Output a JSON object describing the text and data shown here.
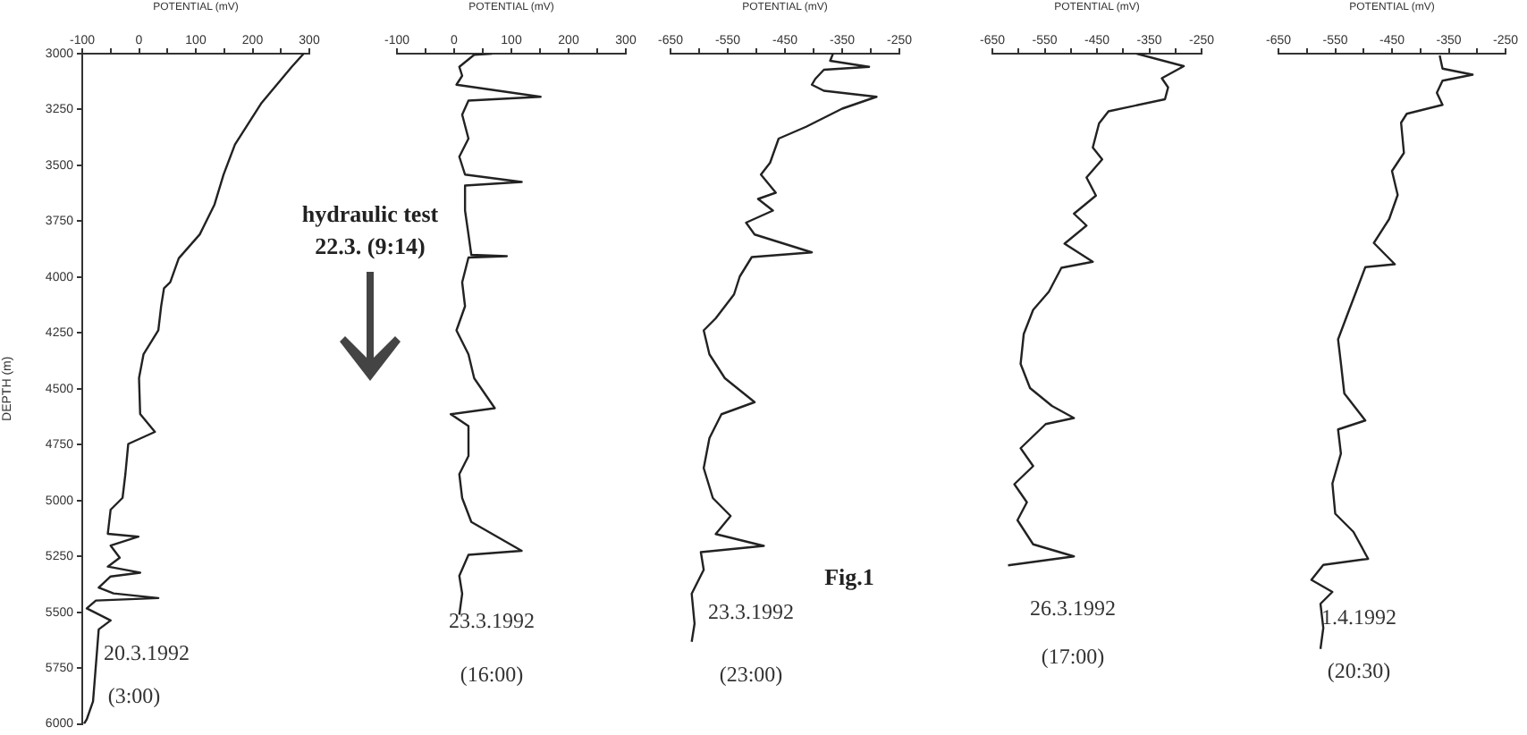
{
  "chart_data": [
    {
      "type": "line",
      "xlabel": "POTENTIAL (mV)",
      "ylabel": "DEPTH (m)",
      "xlim": [
        -100,
        300
      ],
      "xticks": [
        -100,
        {
          "value": -50,
          "label": null
        },
        0,
        {
          "value": 50,
          "label": null
        },
        100,
        {
          "value": 150,
          "label": null
        },
        200,
        {
          "value": 250,
          "label": null
        },
        300
      ],
      "ylim": [
        6000,
        3000
      ],
      "yticks": [
        3000,
        3250,
        3500,
        3750,
        4000,
        4250,
        4500,
        4750,
        5000,
        5250,
        5500,
        5750,
        6000
      ],
      "series": [
        {
          "color": "#222222",
          "x": [
            290,
            269,
            216,
            169,
            149,
            133,
            107,
            70,
            55,
            44,
            39,
            34,
            8,
            0,
            2,
            28,
            -19,
            -24,
            -29,
            -50,
            -55,
            -1,
            -50,
            -34,
            -55,
            2,
            -50,
            -71,
            -45,
            34,
            -76,
            -92,
            -50,
            -71,
            -76,
            -81,
            -92,
            -97
          ],
          "values": [
            3000,
            3059,
            3220,
            3407,
            3541,
            3675,
            3809,
            3916,
            4023,
            4050,
            4130,
            4238,
            4345,
            4452,
            4613,
            4693,
            4747,
            4881,
            4988,
            5041,
            5149,
            5162,
            5202,
            5256,
            5296,
            5323,
            5340,
            5390,
            5416,
            5437,
            5448,
            5483,
            5537,
            5577,
            5738,
            5899,
            5979,
            6000
          ]
        }
      ],
      "annotations": [
        "20.3.1992",
        "(3:00)",
        "hydraulic test",
        "22.3.  (9:14)"
      ]
    },
    {
      "type": "line",
      "xlabel": "POTENTIAL (mV)",
      "xlim": [
        -100,
        300
      ],
      "xticks": [
        -100,
        {
          "value": -50,
          "label": null
        },
        0,
        {
          "value": 50,
          "label": null
        },
        100,
        {
          "value": 150,
          "label": null
        },
        200,
        {
          "value": 250,
          "label": null
        },
        300
      ],
      "ylim": [
        6000,
        3000
      ],
      "tick_labels": "x",
      "series": [
        {
          "color": "#222222",
          "x": [
            66,
            35,
            9,
            14,
            4,
            151,
            25,
            14,
            25,
            9,
            19,
            118,
            19,
            19,
            25,
            30,
            92,
            25,
            14,
            19,
            4,
            25,
            35,
            71,
            -6,
            25,
            25,
            9,
            14,
            30,
            118,
            25,
            9,
            14,
            9
          ],
          "values": [
            3000,
            3005,
            3059,
            3099,
            3139,
            3193,
            3210,
            3273,
            3380,
            3461,
            3541,
            3574,
            3590,
            3702,
            3809,
            3900,
            3906,
            3912,
            4023,
            4130,
            4238,
            4345,
            4452,
            4586,
            4613,
            4666,
            4800,
            4881,
            4988,
            5095,
            5224,
            5242,
            5336,
            5416,
            5510
          ]
        }
      ],
      "annotations": [
        "23.3.1992",
        "(16:00)"
      ]
    },
    {
      "type": "line",
      "xlabel": "POTENTIAL (mV)",
      "xlim": [
        -650,
        -250
      ],
      "xticks": [
        -650,
        {
          "value": -600,
          "label": null
        },
        -550,
        {
          "value": -500,
          "label": null
        },
        -450,
        {
          "value": -400,
          "label": null
        },
        -350,
        {
          "value": -300,
          "label": null
        },
        -250
      ],
      "ylim": [
        6000,
        3000
      ],
      "tick_labels": "x",
      "series": [
        {
          "color": "#222222",
          "x": [
            -366,
            -371,
            -303,
            -382,
            -397,
            -403,
            -382,
            -290,
            -350,
            -413,
            -461,
            -476,
            -492,
            -466,
            -497,
            -471,
            -518,
            -503,
            -403,
            -508,
            -529,
            -539,
            -571,
            -592,
            -582,
            -555,
            -503,
            -561,
            -582,
            -592,
            -576,
            -545,
            -571,
            -487,
            -597,
            -592,
            -613,
            -608,
            -613
          ],
          "values": [
            3000,
            3032,
            3059,
            3072,
            3113,
            3139,
            3166,
            3193,
            3246,
            3327,
            3380,
            3488,
            3541,
            3622,
            3650,
            3702,
            3756,
            3809,
            3889,
            3910,
            3997,
            4077,
            4184,
            4238,
            4345,
            4452,
            4559,
            4613,
            4720,
            4854,
            4988,
            5068,
            5149,
            5202,
            5230,
            5309,
            5416,
            5550,
            5631
          ]
        }
      ],
      "annotations": [
        "23.3.1992",
        "(23:00)",
        "Fig.1"
      ]
    },
    {
      "type": "line",
      "xlabel": "POTENTIAL (mV)",
      "xlim": [
        -650,
        -250
      ],
      "xticks": [
        -650,
        {
          "value": -600,
          "label": null
        },
        -550,
        {
          "value": -500,
          "label": null
        },
        -450,
        {
          "value": -400,
          "label": null
        },
        -350,
        {
          "value": -300,
          "label": null
        },
        -250
      ],
      "ylim": [
        6000,
        3000
      ],
      "tick_labels": "x",
      "series": [
        {
          "color": "#222222",
          "x": [
            -374,
            -284,
            -326,
            -314,
            -320,
            -428,
            -446,
            -458,
            -440,
            -470,
            -452,
            -494,
            -470,
            -512,
            -458,
            -518,
            -542,
            -572,
            -590,
            -596,
            -578,
            -536,
            -494,
            -548,
            -596,
            -572,
            -608,
            -584,
            -602,
            -572,
            -494,
            -620
          ],
          "values": [
            3000,
            3056,
            3110,
            3151,
            3204,
            3258,
            3312,
            3420,
            3473,
            3554,
            3635,
            3716,
            3769,
            3850,
            3931,
            3958,
            4065,
            4146,
            4254,
            4388,
            4496,
            4576,
            4630,
            4657,
            4765,
            4845,
            4926,
            5007,
            5087,
            5195,
            5249,
            5289
          ]
        }
      ],
      "annotations": [
        "26.3.1992",
        "(17:00)"
      ]
    },
    {
      "type": "line",
      "xlabel": "POTENTIAL (mV)",
      "xlim": [
        -650,
        -250
      ],
      "xticks": [
        -650,
        {
          "value": -600,
          "label": null
        },
        -550,
        {
          "value": -500,
          "label": null
        },
        -450,
        {
          "value": -400,
          "label": null
        },
        -350,
        {
          "value": -300,
          "label": null
        },
        -250
      ],
      "ylim": [
        6000,
        3000
      ],
      "tick_labels": "x",
      "series": [
        {
          "color": "#222222",
          "x": [
            -366,
            -361,
            -308,
            -361,
            -371,
            -361,
            -424,
            -434,
            -429,
            -450,
            -440,
            -455,
            -482,
            -445,
            -497,
            -513,
            -529,
            -545,
            -540,
            -534,
            -497,
            -545,
            -540,
            -555,
            -550,
            -518,
            -492,
            -571,
            -592,
            -555,
            -576,
            -571,
            -576
          ],
          "values": [
            3008,
            3067,
            3094,
            3121,
            3175,
            3229,
            3269,
            3309,
            3444,
            3525,
            3632,
            3740,
            3847,
            3942,
            3955,
            4063,
            4170,
            4278,
            4385,
            4520,
            4641,
            4681,
            4789,
            4923,
            5058,
            5139,
            5260,
            5287,
            5354,
            5408,
            5461,
            5569,
            5663
          ]
        }
      ],
      "annotations": [
        "1.4.1992",
        "(20:30)"
      ]
    }
  ]
}
